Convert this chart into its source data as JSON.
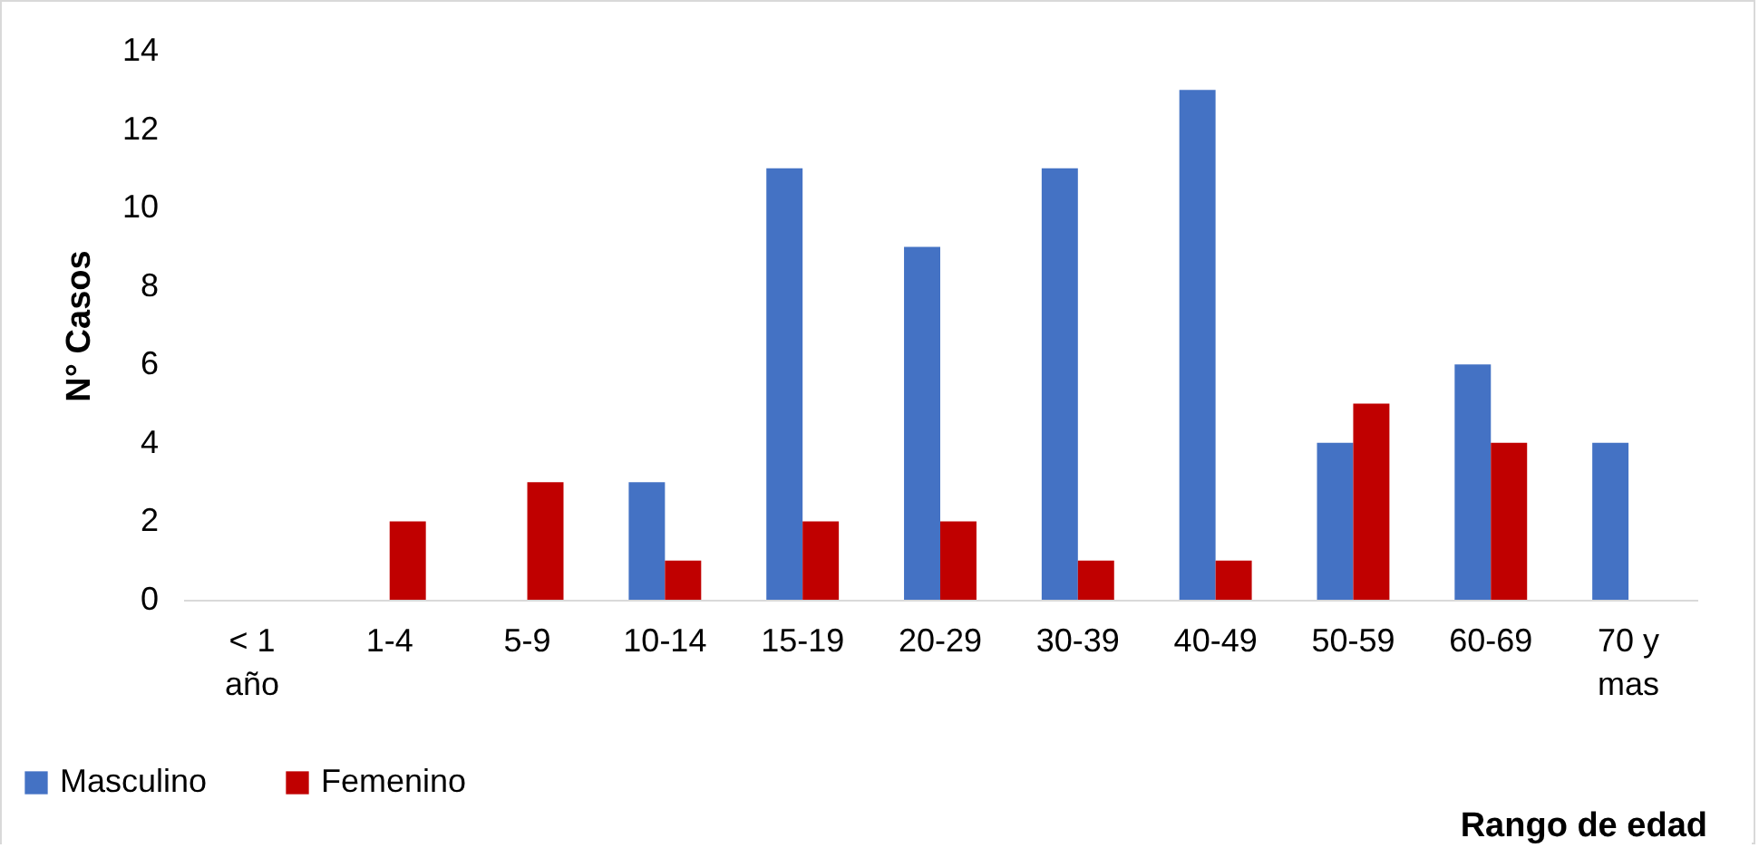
{
  "chart_data": {
    "type": "bar",
    "xlabel": "Rango de edad",
    "ylabel": "N° Casos",
    "categories": [
      "< 1 año",
      "1-4",
      "5-9",
      "10-14",
      "15-19",
      "20-29",
      "30-39",
      "40-49",
      "50-59",
      "60-69",
      "70 y mas"
    ],
    "series": [
      {
        "name": "Masculino",
        "color": "#4472c4",
        "values": [
          0,
          0,
          0,
          3,
          11,
          9,
          11,
          13,
          4,
          6,
          4
        ]
      },
      {
        "name": "Femenino",
        "color": "#c00000",
        "values": [
          0,
          2,
          3,
          1,
          2,
          2,
          1,
          1,
          5,
          4,
          0
        ]
      }
    ],
    "ylim": [
      0,
      14
    ],
    "yticks": [
      0,
      2,
      4,
      6,
      8,
      10,
      12,
      14
    ],
    "grid": false,
    "legend": "bottom left"
  }
}
